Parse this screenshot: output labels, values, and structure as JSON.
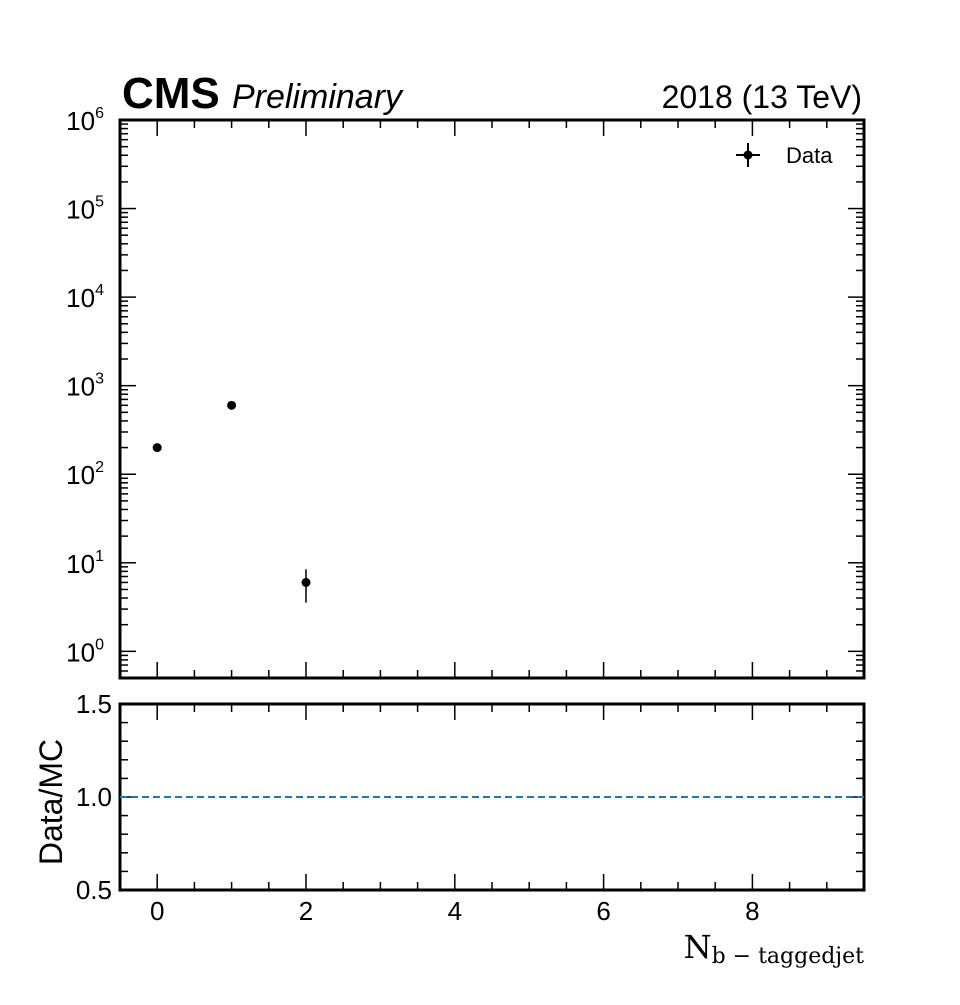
{
  "header": {
    "experiment": "CMS",
    "status": "Preliminary",
    "lumi": "2018 (13 TeV)"
  },
  "chart_data": [
    {
      "type": "scatter",
      "panel": "main",
      "yscale": "log",
      "xlim": [
        -0.5,
        9.5
      ],
      "ylim": [
        0.5,
        1000000
      ],
      "ytick_base": "10",
      "ytick_exponents": [
        "0",
        "1",
        "2",
        "3",
        "4",
        "5",
        "6"
      ],
      "legend": {
        "entries": [
          "Data"
        ],
        "placement": "top-right"
      },
      "series": [
        {
          "name": "Data",
          "x": [
            0,
            1,
            2
          ],
          "y": [
            200,
            600,
            6
          ],
          "yerr": [
            14,
            24.5,
            2.45
          ],
          "color": "#000000"
        }
      ]
    },
    {
      "type": "line",
      "panel": "ratio",
      "xlim": [
        -0.5,
        9.5
      ],
      "ylim": [
        0.5,
        1.5
      ],
      "ylabel": "Data/MC",
      "yticks": [
        "0.5",
        "1.0",
        "1.5"
      ],
      "xticks": [
        "0",
        "2",
        "4",
        "6",
        "8"
      ],
      "xlabel_main": "N",
      "xlabel_sub": "b − taggedjet",
      "reference_line": {
        "y": 1.0,
        "style": "dashed",
        "color": "#1f77b4"
      }
    }
  ]
}
